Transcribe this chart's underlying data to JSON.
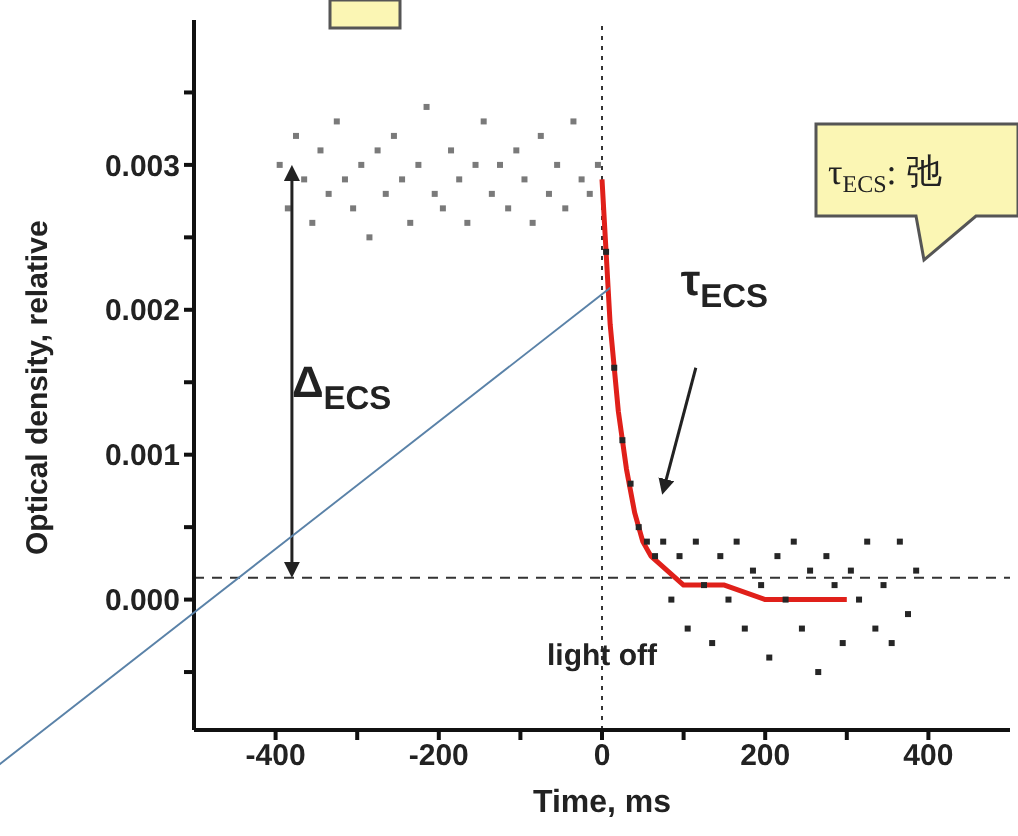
{
  "chart_data": {
    "type": "scatter",
    "xlabel": "Time, ms",
    "ylabel": "Optical density, relative",
    "xlim": [
      -500,
      500
    ],
    "ylim": [
      -0.0009,
      0.004
    ],
    "xticks": [
      -400,
      {
        "value": -300,
        "label": null
      },
      -200,
      {
        "value": -100,
        "label": null
      },
      0,
      {
        "value": 100,
        "label": null
      },
      200,
      {
        "value": 300,
        "label": null
      },
      400
    ],
    "yticks": [
      {
        "value": -0.0005,
        "label": null
      },
      {
        "value": 0,
        "label": "0.000"
      },
      {
        "value": 0.0005,
        "label": null
      },
      {
        "value": 0.001,
        "label": "0.001"
      },
      {
        "value": 0.0015,
        "label": null
      },
      {
        "value": 0.002,
        "label": "0.002"
      },
      {
        "value": 0.0025,
        "label": null
      },
      {
        "value": 0.003,
        "label": "0.003"
      },
      {
        "value": 0.0035,
        "label": null
      }
    ],
    "marker": "square",
    "grid": false,
    "legend": false,
    "series": [
      {
        "color": "#7a7a7a",
        "x": [
          -395,
          -385,
          -375,
          -365,
          -355,
          -345,
          -335,
          -325,
          -315,
          -305,
          -295,
          -285,
          -275,
          -265,
          -255,
          -245,
          -235,
          -225,
          -215,
          -205,
          -195,
          -185,
          -175,
          -165,
          -155,
          -145,
          -135,
          -125,
          -115,
          -105,
          -95,
          -85,
          -75,
          -65,
          -55,
          -45,
          -35,
          -25,
          -15,
          -5
        ],
        "values": [
          0.003,
          0.0027,
          0.0032,
          0.0029,
          0.0026,
          0.0031,
          0.0028,
          0.0033,
          0.0029,
          0.0027,
          0.003,
          0.0025,
          0.0031,
          0.0028,
          0.0032,
          0.0029,
          0.0026,
          0.003,
          0.0034,
          0.0028,
          0.0027,
          0.0031,
          0.0029,
          0.0026,
          0.003,
          0.0033,
          0.0028,
          0.003,
          0.0027,
          0.0031,
          0.0029,
          0.0026,
          0.0032,
          0.0028,
          0.003,
          0.0027,
          0.0033,
          0.0029,
          0.0028,
          0.003
        ]
      },
      {
        "color": "#262626",
        "x": [
          5,
          15,
          25,
          35,
          45,
          55,
          65,
          75,
          85,
          95,
          105,
          115,
          125,
          135,
          145,
          155,
          165,
          175,
          185,
          195,
          205,
          215,
          225,
          235,
          245,
          255,
          265,
          275,
          285,
          295,
          305,
          315,
          325,
          335,
          345,
          355,
          365,
          375,
          385
        ],
        "values": [
          0.0024,
          0.0016,
          0.0011,
          0.0008,
          0.0005,
          0.0004,
          0.0003,
          0.0004,
          0.0,
          0.0003,
          -0.0002,
          0.0004,
          0.0001,
          -0.0003,
          0.0003,
          0.0,
          0.0004,
          -0.0002,
          0.0002,
          0.0001,
          -0.0004,
          0.0003,
          0.0,
          0.0004,
          -0.0002,
          0.0002,
          -0.0005,
          0.0003,
          0.0001,
          -0.0003,
          0.0002,
          0.0,
          0.0004,
          -0.0002,
          0.0001,
          -0.0003,
          0.0004,
          -0.0001,
          0.0002
        ]
      },
      {
        "type": "line",
        "color": "#e0201a",
        "x": [
          0,
          10,
          20,
          30,
          40,
          50,
          60,
          80,
          100,
          150,
          200,
          300
        ],
        "marker": "none",
        "values": [
          0.0029,
          0.0019,
          0.0013,
          0.0009,
          0.0006,
          0.0004,
          0.0003,
          0.0002,
          0.0001,
          0.0001,
          0.0,
          0.0
        ]
      }
    ],
    "ref_lines": [
      {
        "axis": "y",
        "value": 0.00015,
        "line_style": "dashed",
        "color": "#333333"
      },
      {
        "axis": "x",
        "value": 0,
        "line_style": "dotted",
        "color": "#333333"
      }
    ],
    "annotations": [
      "Δ$_{ECS}$",
      "τ$_{ECS}$",
      "light off",
      "τ$_{ECS}$: 弛"
    ]
  }
}
